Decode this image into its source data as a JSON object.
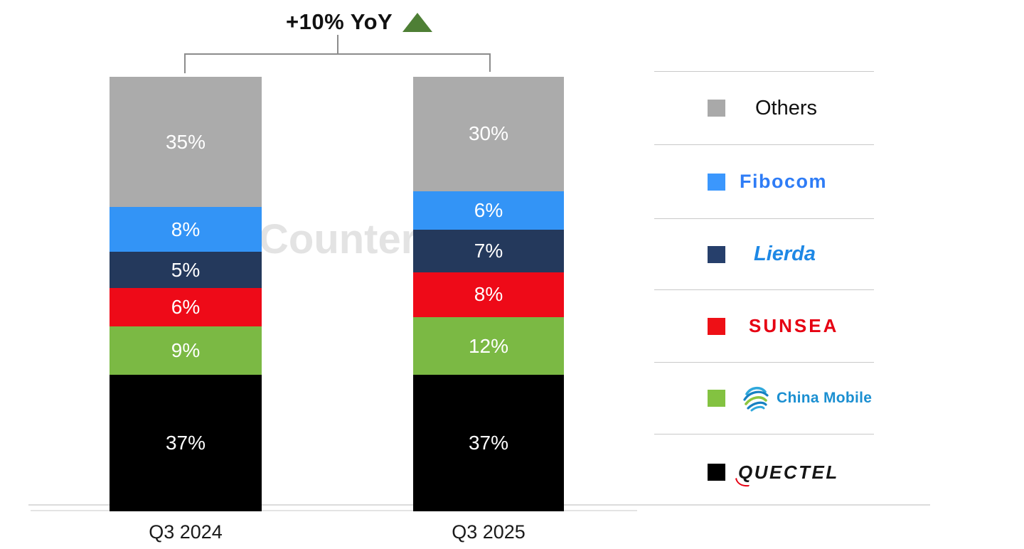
{
  "watermark": "Counterp",
  "chart_data": {
    "type": "bar",
    "stacked": true,
    "title": "+10% YoY",
    "categories": [
      "Q3 2024",
      "Q3 2025"
    ],
    "unit": "%",
    "ylim": [
      0,
      100
    ],
    "grid": false,
    "legend_position": "right",
    "series": [
      {
        "name": "Others",
        "color": "#ABABAB",
        "values": [
          35,
          30
        ]
      },
      {
        "name": "Fibocom",
        "color": "#3394F6",
        "values": [
          8,
          6
        ]
      },
      {
        "name": "Lierda",
        "color": "#24395C",
        "values": [
          5,
          7
        ]
      },
      {
        "name": "SUNSEA",
        "color": "#EE0A18",
        "values": [
          6,
          8
        ]
      },
      {
        "name": "China Mobile",
        "color": "#7BB944",
        "values": [
          9,
          12
        ]
      },
      {
        "name": "Quectel",
        "color": "#000000",
        "values": [
          37,
          37
        ]
      }
    ],
    "annotation": {
      "text": "+10% YoY",
      "arrow": "up",
      "arrow_color": "#4E7F35"
    }
  },
  "legend": {
    "items": [
      {
        "label": "Others",
        "color": "#A9A9A9"
      },
      {
        "label": "Fibocom",
        "color": "#3B97FD"
      },
      {
        "label": "Lierda",
        "color": "#263F6B"
      },
      {
        "label": "SUNSEA",
        "color": "#EE1016"
      },
      {
        "label": "China Mobile",
        "color": "#83C241"
      },
      {
        "label": "QUECTEL",
        "color": "#000000"
      }
    ]
  }
}
